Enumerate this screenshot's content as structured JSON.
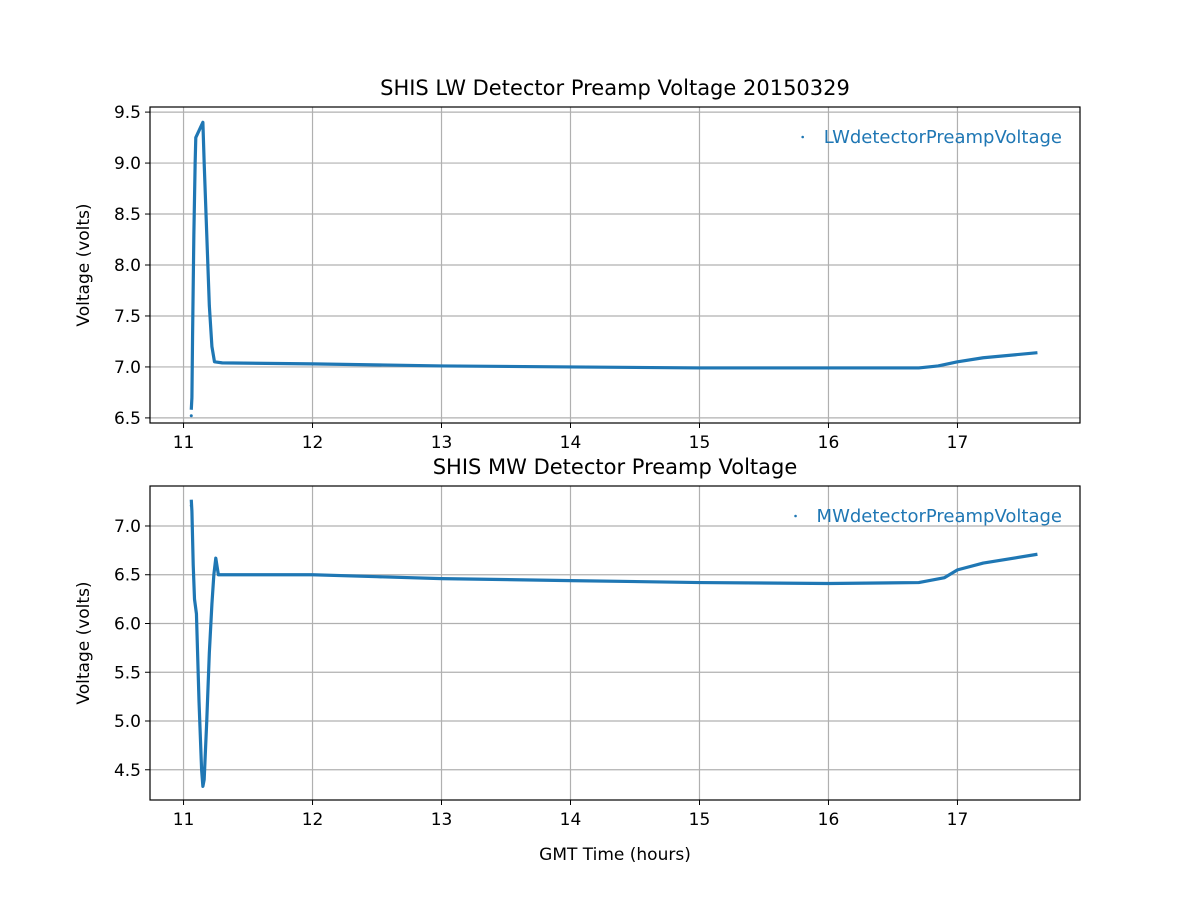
{
  "chart_data": [
    {
      "type": "line",
      "title": "SHIS LW Detector Preamp Voltage 20150329",
      "xlabel": "",
      "ylabel": "Voltage (volts)",
      "xlim": [
        10.74,
        17.95
      ],
      "ylim": [
        6.45,
        9.55
      ],
      "xticks": [
        11,
        12,
        13,
        14,
        15,
        16,
        17
      ],
      "xtick_labels": [
        "11",
        "12",
        "13",
        "14",
        "15",
        "16",
        "17"
      ],
      "yticks": [
        6.5,
        7.0,
        7.5,
        8.0,
        8.5,
        9.0,
        9.5
      ],
      "ytick_labels": [
        "6.5",
        "7.0",
        "7.5",
        "8.0",
        "8.5",
        "9.0",
        "9.5"
      ],
      "grid": true,
      "legend_position": "top-right",
      "series": [
        {
          "name": "LWdetectorPreampVoltage",
          "color": "#1f77b4",
          "x": [
            11.06,
            11.065,
            11.07,
            11.08,
            11.09,
            11.095,
            11.15,
            11.16,
            11.18,
            11.2,
            11.22,
            11.24,
            11.3,
            12,
            13,
            14,
            15,
            16,
            16.7,
            16.85,
            17,
            17.2,
            17.62
          ],
          "y": [
            6.58,
            6.7,
            7.3,
            8.3,
            9.0,
            9.25,
            9.4,
            9.0,
            8.3,
            7.6,
            7.2,
            7.05,
            7.04,
            7.03,
            7.01,
            7.0,
            6.99,
            6.99,
            6.99,
            7.01,
            7.05,
            7.09,
            7.14
          ]
        }
      ]
    },
    {
      "type": "line",
      "title": "SHIS MW Detector Preamp Voltage",
      "xlabel": "GMT Time (hours)",
      "ylabel": "Voltage (volts)",
      "xlim": [
        10.74,
        17.95
      ],
      "ylim": [
        4.19,
        7.41
      ],
      "xticks": [
        11,
        12,
        13,
        14,
        15,
        16,
        17
      ],
      "xtick_labels": [
        "11",
        "12",
        "13",
        "14",
        "15",
        "16",
        "17"
      ],
      "yticks": [
        4.5,
        5.0,
        5.5,
        6.0,
        6.5,
        7.0
      ],
      "ytick_labels": [
        "4.5",
        "5.0",
        "5.5",
        "6.0",
        "6.5",
        "7.0"
      ],
      "grid": true,
      "legend_position": "top-right",
      "series": [
        {
          "name": "MWdetectorPreampVoltage",
          "color": "#1f77b4",
          "x": [
            11.06,
            11.065,
            11.075,
            11.085,
            11.1,
            11.12,
            11.14,
            11.15,
            11.16,
            11.18,
            11.2,
            11.22,
            11.235,
            11.25,
            11.27,
            11.3,
            12,
            12.5,
            13,
            14,
            15,
            16,
            16.7,
            16.9,
            17,
            17.2,
            17.62
          ],
          "y": [
            7.27,
            7.15,
            6.6,
            6.25,
            6.1,
            5.2,
            4.5,
            4.33,
            4.4,
            5.0,
            5.7,
            6.2,
            6.5,
            6.67,
            6.5,
            6.5,
            6.5,
            6.48,
            6.46,
            6.44,
            6.42,
            6.41,
            6.42,
            6.47,
            6.55,
            6.62,
            6.71
          ]
        }
      ]
    }
  ]
}
